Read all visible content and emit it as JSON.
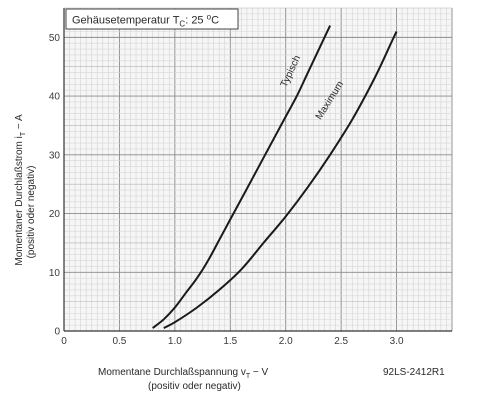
{
  "chart_data": {
    "type": "line",
    "title": {
      "prefix": "Gehäusetemperatur T",
      "sub": "C",
      "suffix": ": 25 ",
      "unit_sup": "o",
      "unit": "C"
    },
    "xlabel": {
      "main": "Momentane Durchlaßspannung v",
      "sub": "T",
      "suffix": " − V",
      "line2": "(positiv oder negativ)"
    },
    "ylabel": {
      "main": "Momentaner Durchlaßstrom i",
      "sub": "T",
      "suffix": " − A",
      "line2": "(positiv oder negativ)"
    },
    "figure_code": "92LS-2412R1",
    "xlim": [
      0,
      3.5
    ],
    "ylim": [
      0,
      55
    ],
    "x_ticks": [
      {
        "value": 0,
        "label": "0"
      },
      {
        "value": 0.5,
        "label": "0.5"
      },
      {
        "value": 1.0,
        "label": "1.0"
      },
      {
        "value": 1.5,
        "label": "1.5"
      },
      {
        "value": 2.0,
        "label": "2.0"
      },
      {
        "value": 2.5,
        "label": "2.5"
      },
      {
        "value": 3.0,
        "label": "3.0"
      }
    ],
    "y_ticks": [
      {
        "value": 0,
        "label": "0"
      },
      {
        "value": 10,
        "label": "10"
      },
      {
        "value": 20,
        "label": "20"
      },
      {
        "value": 30,
        "label": "30"
      },
      {
        "value": 40,
        "label": "40"
      },
      {
        "value": 50,
        "label": "50"
      }
    ],
    "grid": true,
    "series": [
      {
        "name": "Typisch",
        "color": "#1a1a1a",
        "points": [
          [
            0.8,
            0.5
          ],
          [
            0.9,
            2
          ],
          [
            1.0,
            4
          ],
          [
            1.1,
            6.5
          ],
          [
            1.2,
            9
          ],
          [
            1.3,
            12
          ],
          [
            1.4,
            15.5
          ],
          [
            1.5,
            19
          ],
          [
            1.6,
            22.5
          ],
          [
            1.7,
            26
          ],
          [
            1.8,
            29.5
          ],
          [
            1.9,
            33
          ],
          [
            2.0,
            36.5
          ],
          [
            2.1,
            40
          ],
          [
            2.2,
            44
          ],
          [
            2.3,
            48
          ],
          [
            2.4,
            52
          ]
        ],
        "label_at": [
          2.15,
          44
        ]
      },
      {
        "name": "Maximum",
        "color": "#1a1a1a",
        "points": [
          [
            0.9,
            0.5
          ],
          [
            1.0,
            1.5
          ],
          [
            1.2,
            4
          ],
          [
            1.4,
            7
          ],
          [
            1.6,
            10.5
          ],
          [
            1.8,
            15
          ],
          [
            2.0,
            19.5
          ],
          [
            2.2,
            24.5
          ],
          [
            2.4,
            30
          ],
          [
            2.6,
            36
          ],
          [
            2.8,
            43
          ],
          [
            2.95,
            49
          ],
          [
            3.0,
            51
          ]
        ],
        "label_at": [
          2.5,
          39
        ]
      }
    ]
  }
}
